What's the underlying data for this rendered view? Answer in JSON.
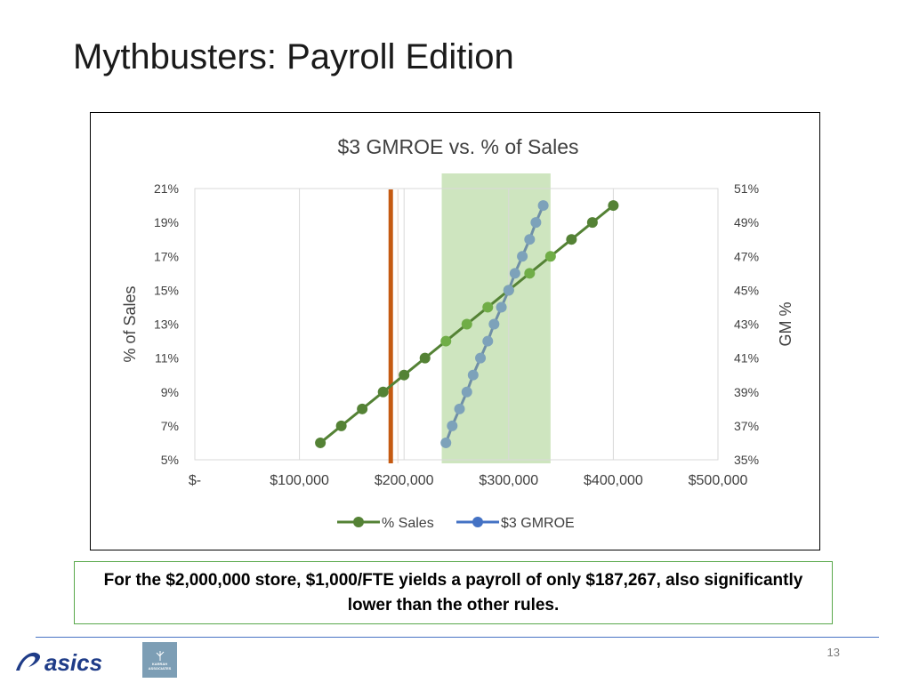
{
  "slide": {
    "title": "Mythbusters: Payroll Edition",
    "caption": "For the $2,000,000 store, $1,000/FTE yields a payroll of only $187,267, also significantly lower than the other rules.",
    "page_number": "13"
  },
  "logos": {
    "asics_text": "asics",
    "partner_name": "KARRAH",
    "partner_subtitle": "ASSOCIATES"
  },
  "colors": {
    "sales_line": "#548235",
    "sales_marker_dark": "#548235",
    "sales_marker_light": "#70ad47",
    "gmroe_line": "#6f8fa6",
    "gmroe_marker": "#7da2ba",
    "highlight_band": "#c5e0b4",
    "reference_line": "#c55a11",
    "caption_border": "#59a84b",
    "footer_rule": "#4a74c4"
  },
  "chart_data": {
    "type": "line",
    "title": "$3 GMROE vs. % of Sales",
    "xlabel": "",
    "ylabel": "% of Sales",
    "y2label": "GM %",
    "xlim": [
      0,
      500000
    ],
    "ylim": [
      0.05,
      0.21
    ],
    "y2lim": [
      0.35,
      0.51
    ],
    "x_ticks": [
      0,
      100000,
      200000,
      300000,
      400000,
      500000
    ],
    "x_tick_labels": [
      "$-",
      "$100,000",
      "$200,000",
      "$300,000",
      "$400,000",
      "$500,000"
    ],
    "y_tick_labels": [
      "5%",
      "7%",
      "9%",
      "11%",
      "13%",
      "15%",
      "17%",
      "19%",
      "21%"
    ],
    "y2_tick_labels": [
      "35%",
      "37%",
      "39%",
      "41%",
      "43%",
      "45%",
      "47%",
      "49%",
      "51%"
    ],
    "grid": "vertical",
    "legend_position": "bottom",
    "series": [
      {
        "name": "% Sales",
        "axis": "left",
        "x": [
          120000,
          140000,
          160000,
          180000,
          200000,
          220000,
          240000,
          260000,
          280000,
          300000,
          320000,
          340000,
          360000,
          380000,
          400000
        ],
        "y": [
          0.06,
          0.07,
          0.08,
          0.09,
          0.1,
          0.11,
          0.12,
          0.13,
          0.14,
          0.15,
          0.16,
          0.17,
          0.18,
          0.19,
          0.2
        ]
      },
      {
        "name": "$3 GMROE",
        "axis": "right",
        "x": [
          240000,
          246000,
          253000,
          260000,
          266000,
          273000,
          280000,
          286000,
          293000,
          300000,
          306000,
          313000,
          320000,
          326000,
          333000
        ],
        "y": [
          0.36,
          0.37,
          0.38,
          0.39,
          0.4,
          0.41,
          0.42,
          0.43,
          0.44,
          0.45,
          0.46,
          0.47,
          0.48,
          0.49,
          0.5
        ]
      }
    ],
    "highlight_band": {
      "x_from": 236000,
      "x_to": 340000
    },
    "reference_line": {
      "x": 187267
    }
  }
}
